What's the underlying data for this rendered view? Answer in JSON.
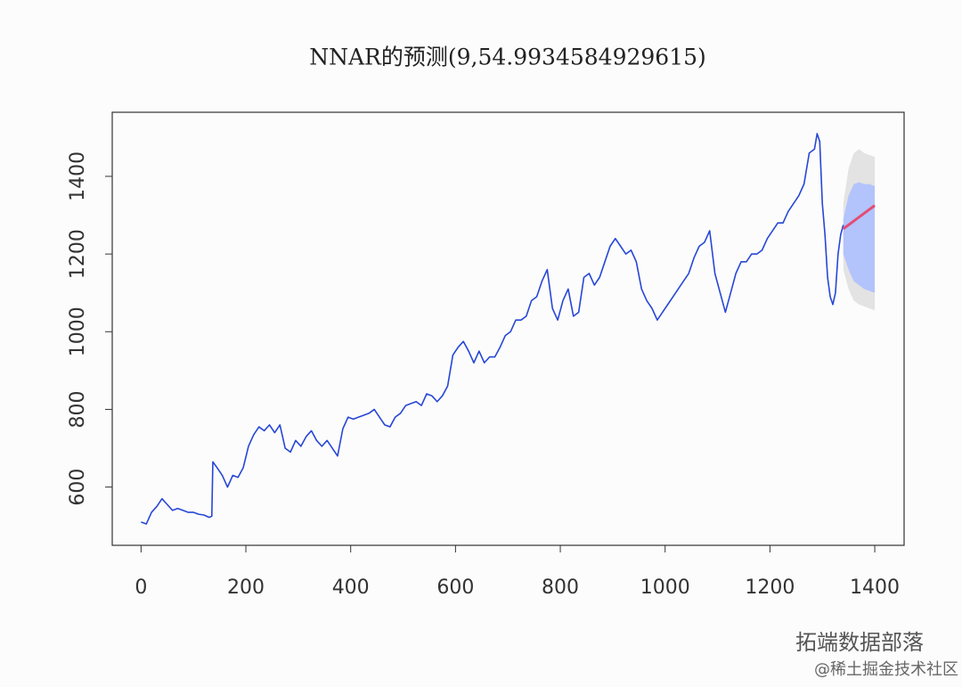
{
  "chart_data": {
    "type": "line",
    "title": "NNAR的预测(9,54.9934584929615)",
    "x": [
      0,
      10,
      20,
      30,
      40,
      50,
      60,
      70,
      80,
      90,
      100,
      110,
      120,
      130,
      135,
      137,
      145,
      155,
      165,
      175,
      185,
      195,
      205,
      215,
      225,
      235,
      245,
      255,
      265,
      275,
      285,
      295,
      305,
      315,
      325,
      335,
      345,
      355,
      365,
      375,
      385,
      395,
      405,
      415,
      425,
      435,
      445,
      455,
      465,
      475,
      485,
      495,
      505,
      515,
      525,
      535,
      545,
      555,
      565,
      575,
      585,
      595,
      605,
      615,
      625,
      635,
      645,
      655,
      665,
      675,
      685,
      695,
      705,
      715,
      725,
      735,
      745,
      755,
      765,
      775,
      785,
      795,
      805,
      815,
      825,
      835,
      845,
      855,
      865,
      875,
      885,
      895,
      905,
      915,
      925,
      935,
      945,
      955,
      965,
      975,
      985,
      995,
      1005,
      1015,
      1025,
      1035,
      1045,
      1055,
      1065,
      1075,
      1085,
      1095,
      1105,
      1115,
      1125,
      1135,
      1145,
      1155,
      1165,
      1175,
      1185,
      1195,
      1205,
      1215,
      1225,
      1235,
      1245,
      1255,
      1265,
      1275,
      1285,
      1290,
      1295,
      1300,
      1305,
      1310,
      1315,
      1320,
      1325,
      1330,
      1335,
      1340
    ],
    "series": [
      {
        "color": "#2747d6",
        "values": [
          510,
          505,
          535,
          550,
          570,
          555,
          540,
          545,
          540,
          535,
          535,
          530,
          528,
          522,
          525,
          665,
          650,
          630,
          600,
          630,
          625,
          650,
          705,
          735,
          755,
          745,
          760,
          740,
          760,
          700,
          690,
          720,
          705,
          730,
          745,
          720,
          705,
          720,
          700,
          680,
          750,
          780,
          775,
          780,
          785,
          790,
          800,
          780,
          760,
          755,
          780,
          790,
          810,
          815,
          820,
          810,
          840,
          835,
          820,
          835,
          860,
          940,
          960,
          975,
          950,
          920,
          950,
          920,
          935,
          935,
          960,
          990,
          1000,
          1030,
          1030,
          1040,
          1080,
          1090,
          1130,
          1160,
          1060,
          1030,
          1080,
          1110,
          1040,
          1050,
          1140,
          1150,
          1120,
          1140,
          1180,
          1220,
          1240,
          1220,
          1200,
          1210,
          1180,
          1110,
          1080,
          1060,
          1030,
          1050,
          1070,
          1090,
          1110,
          1130,
          1150,
          1190,
          1220,
          1230,
          1260,
          1150,
          1100,
          1050,
          1100,
          1150,
          1180,
          1180,
          1200,
          1200,
          1210,
          1240,
          1260,
          1280,
          1280,
          1310,
          1330,
          1350,
          1380,
          1460,
          1470,
          1510,
          1490,
          1330,
          1250,
          1140,
          1090,
          1070,
          1100,
          1200,
          1250,
          1275
        ]
      }
    ],
    "forecast": {
      "x": [
        1340,
        1350,
        1360,
        1370,
        1380,
        1390,
        1400
      ],
      "mean": [
        1265,
        1275,
        1285,
        1295,
        1305,
        1315,
        1325
      ],
      "lower80": [
        1200,
        1160,
        1130,
        1120,
        1110,
        1105,
        1100
      ],
      "upper80": [
        1290,
        1350,
        1380,
        1385,
        1380,
        1380,
        1375
      ],
      "lower95": [
        1160,
        1110,
        1080,
        1070,
        1065,
        1060,
        1055
      ],
      "upper95": [
        1330,
        1420,
        1460,
        1470,
        1460,
        1455,
        1450
      ],
      "color": "#e34d74",
      "color80": "#b3c3fb",
      "color95": "#e3e3e3"
    },
    "xlim": [
      -55,
      1456
    ],
    "ylim": [
      450,
      1565
    ],
    "xticks": [
      0,
      200,
      400,
      600,
      800,
      1000,
      1200,
      1400
    ],
    "yticks": [
      600,
      800,
      1000,
      1200,
      1400
    ],
    "watermark": "拓端数据部落",
    "watermark2": "@稀土掘金技术社区"
  }
}
